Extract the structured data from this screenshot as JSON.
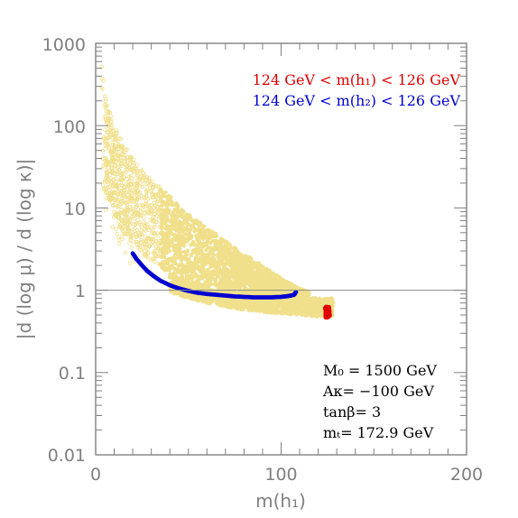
{
  "chart_data": {
    "type": "scatter",
    "title": "",
    "xlabel": "m(h₁)",
    "ylabel": "|d (log μ) / d (log κ)|",
    "xlim": [
      0,
      200
    ],
    "ylim": [
      0.01,
      1000
    ],
    "y_scale": "log",
    "x_ticks": [
      "0",
      "100",
      "200"
    ],
    "y_ticks": [
      "0.01",
      "0.1",
      "1",
      "10",
      "100",
      "1000"
    ],
    "reference_line_y": 1,
    "colors": {
      "scan": "#f0e08c",
      "h1": "#e00000",
      "h2": "#0000d0",
      "axis": "#808080"
    },
    "legend": [
      {
        "text": "124 GeV < m(h₁) < 126 GeV",
        "color": "#e00000"
      },
      {
        "text": "124 GeV < m(h₂) < 126 GeV",
        "color": "#0000d0"
      }
    ],
    "parameters": [
      "M₀ = 1500 GeV",
      "Aκ= −100 GeV",
      "tanβ= 3",
      "mₜ= 172.9 GeV"
    ],
    "series": [
      {
        "label": "scan_upper_edge",
        "x": [
          3,
          6,
          10,
          15,
          20,
          30,
          40,
          50,
          60,
          70,
          80,
          90,
          100,
          108,
          115,
          122
        ],
        "y": [
          600,
          200,
          100,
          60,
          40,
          22,
          14,
          8.5,
          5.8,
          4,
          2.8,
          2,
          1.4,
          1.1,
          0.95,
          0.75
        ]
      },
      {
        "label": "scan_inner_edge",
        "x": [
          6,
          10,
          15,
          20,
          30,
          40,
          50,
          60,
          70,
          80,
          90,
          100,
          107,
          112
        ],
        "y": [
          15,
          8,
          5,
          3.5,
          2.2,
          1.6,
          1.2,
          1.02,
          0.95,
          0.92,
          0.9,
          0.9,
          0.93,
          0.85
        ]
      },
      {
        "label": "scan_lower_edge",
        "x": [
          40,
          50,
          60,
          70,
          80,
          90,
          100,
          110,
          120,
          128
        ],
        "y": [
          0.95,
          0.8,
          0.7,
          0.63,
          0.58,
          0.55,
          0.52,
          0.5,
          0.48,
          0.47
        ]
      },
      {
        "label": "h2_125",
        "x": [
          20,
          22,
          25,
          28,
          31,
          35,
          40,
          45,
          50,
          55,
          60,
          65,
          70,
          75,
          80,
          85,
          90,
          95,
          100,
          104,
          107,
          108
        ],
        "y": [
          2.8,
          2.4,
          2.0,
          1.7,
          1.5,
          1.3,
          1.15,
          1.05,
          0.98,
          0.93,
          0.9,
          0.88,
          0.86,
          0.84,
          0.83,
          0.82,
          0.82,
          0.82,
          0.83,
          0.85,
          0.88,
          0.95
        ]
      },
      {
        "label": "h1_125",
        "x": [
          124,
          124.3,
          124.6,
          125,
          125.3,
          125.6,
          126,
          124.5,
          125.2,
          125.8
        ],
        "y": [
          0.6,
          0.55,
          0.5,
          0.48,
          0.52,
          0.57,
          0.5,
          0.62,
          0.6,
          0.55
        ]
      }
    ]
  }
}
